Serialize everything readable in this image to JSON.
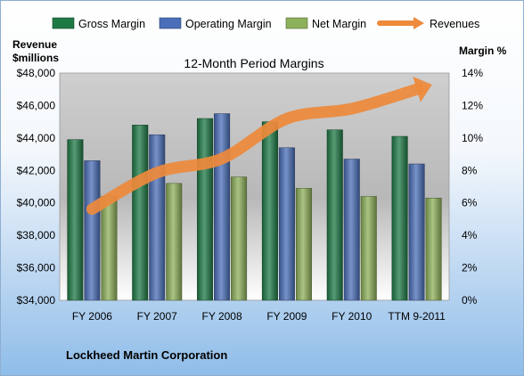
{
  "chart_data": {
    "type": "bar",
    "title": "12-Month Period Margins",
    "categories": [
      "FY 2006",
      "FY 2007",
      "FY 2008",
      "FY 2009",
      "FY 2010",
      "TTM 9-2011"
    ],
    "series": [
      {
        "name": "Gross Margin",
        "axis": "right",
        "color": "#1e7a45",
        "values": [
          9.9,
          10.8,
          11.2,
          11.0,
          10.5,
          10.1
        ]
      },
      {
        "name": "Operating Margin",
        "axis": "right",
        "color": "#4a6fb8",
        "values": [
          8.6,
          10.2,
          11.5,
          9.4,
          8.7,
          8.4
        ]
      },
      {
        "name": "Net Margin",
        "axis": "right",
        "color": "#8db05a",
        "values": [
          6.4,
          7.2,
          7.6,
          6.9,
          6.4,
          6.3
        ]
      },
      {
        "name": "Revenues",
        "axis": "left",
        "type": "line",
        "color": "#ed8a3c",
        "values": [
          39620,
          41862,
          42731,
          45189,
          45803,
          47000
        ]
      }
    ],
    "ylabel_left": "Revenue\n$millions",
    "ylabel_right": "Margin  %",
    "ylim_left": [
      34000,
      48000
    ],
    "ylim_right": [
      0,
      14
    ],
    "yticks_left": [
      "$34,000",
      "$36,000",
      "$38,000",
      "$40,000",
      "$42,000",
      "$44,000",
      "$46,000",
      "$48,000"
    ],
    "yticks_right": [
      "0%",
      "2%",
      "4%",
      "6%",
      "8%",
      "10%",
      "12%",
      "14%"
    ],
    "legend_position": "top",
    "grid": false
  },
  "company_label": "Lockheed Martin Corporation"
}
